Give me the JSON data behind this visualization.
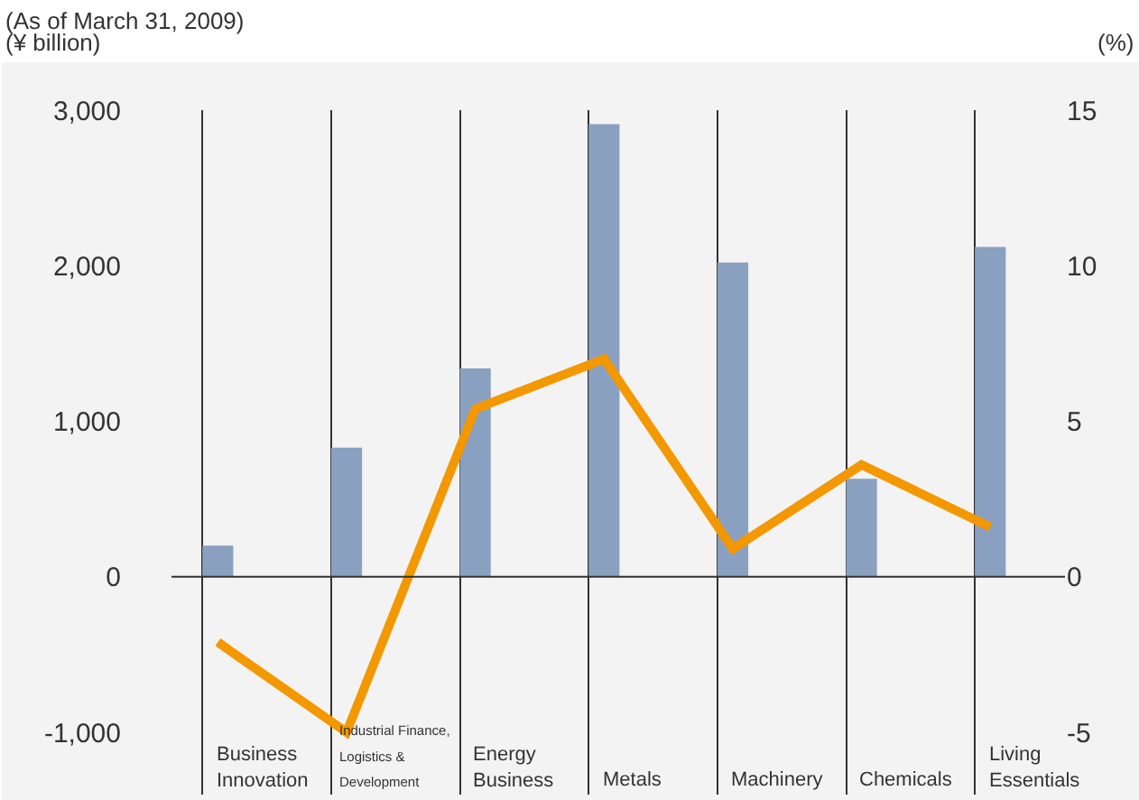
{
  "chart_data": {
    "type": "bar",
    "title": "(As of March 31, 2009)",
    "ylabel": "(¥ billion)",
    "y2label": "(%)",
    "categories": [
      "Business Innovation",
      "Industrial Finance, Logistics & Development",
      "Energy Business",
      "Metals",
      "Machinery",
      "Chemicals",
      "Living Essentials"
    ],
    "series": [
      {
        "color": "#8aa0c0",
        "values": [
          200,
          830,
          1340,
          2910,
          2020,
          630,
          2120
        ]
      },
      {
        "type": "line",
        "axis": "y2",
        "color": "#f39800",
        "values": [
          -2.1,
          -5.0,
          5.4,
          7.0,
          0.9,
          3.6,
          1.6
        ]
      }
    ],
    "ylim": [
      -1400,
      3000
    ],
    "yticks": [
      {
        "value": 3000,
        "label": "3,000"
      },
      {
        "value": 2000,
        "label": "2,000"
      },
      {
        "value": 1000,
        "label": "1,000"
      },
      0,
      {
        "value": -1000,
        "label": "-1,000"
      }
    ],
    "y2lim": [
      -7,
      15
    ],
    "y2ticks": [
      15,
      10,
      5,
      0,
      -5
    ],
    "grid": "x",
    "ref_lines": [
      {
        "axis": "y",
        "value": 0,
        "color": "#333333"
      }
    ],
    "marker": "none",
    "line_style": "solid"
  }
}
